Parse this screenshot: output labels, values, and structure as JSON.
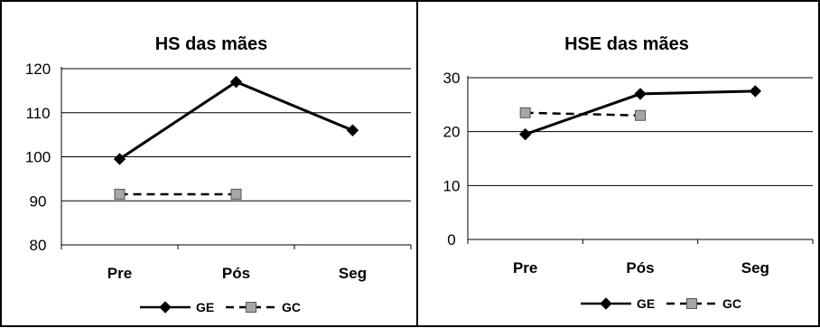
{
  "chart_data": [
    {
      "type": "line",
      "title": "HS das mães",
      "categories": [
        "Pre",
        "Pós",
        "Seg"
      ],
      "ylim": [
        80,
        120
      ],
      "yticks": [
        80,
        90,
        100,
        110,
        120
      ],
      "grid": true,
      "legend": "bottom",
      "series": [
        {
          "name": "GE",
          "values": [
            99.5,
            117,
            106
          ],
          "style": "solid",
          "marker": "diamond",
          "color": "#000000"
        },
        {
          "name": "GC",
          "values": [
            91.5,
            91.5,
            null
          ],
          "style": "dashed",
          "marker": "square",
          "color": "#000000",
          "marker_fill": "#a6a6a6"
        }
      ]
    },
    {
      "type": "line",
      "title": "HSE das mães",
      "categories": [
        "Pre",
        "Pós",
        "Seg"
      ],
      "ylim": [
        0,
        30
      ],
      "yticks": [
        0,
        10,
        20,
        30
      ],
      "grid": true,
      "legend": "bottom",
      "series": [
        {
          "name": "GE",
          "values": [
            19.5,
            27,
            27.5
          ],
          "style": "solid",
          "marker": "diamond",
          "color": "#000000"
        },
        {
          "name": "GC",
          "values": [
            23.5,
            23,
            null
          ],
          "style": "dashed",
          "marker": "square",
          "color": "#000000",
          "marker_fill": "#a6a6a6"
        }
      ]
    }
  ]
}
